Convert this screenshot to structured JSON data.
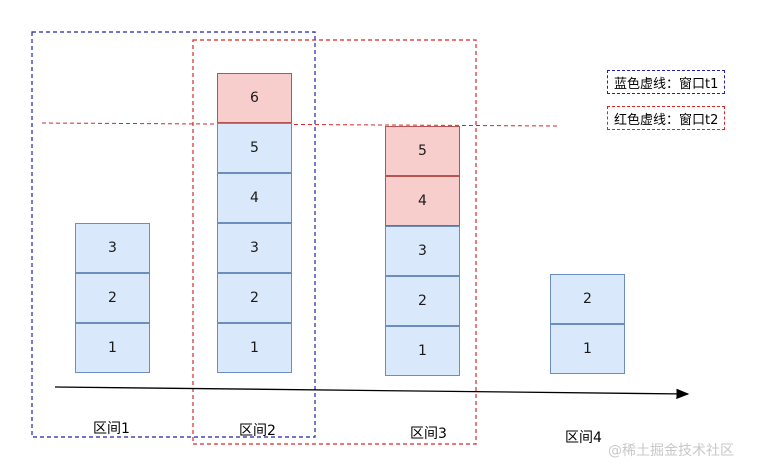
{
  "colors": {
    "blue_window": "#2222aa",
    "red_window": "#d62728",
    "blue_block_fill": "#dae8fc",
    "blue_block_border": "#6c8ebf",
    "red_block_fill": "#f8cecc",
    "red_block_border": "#b85450"
  },
  "intervals": [
    {
      "label": "区间1",
      "blocks": [
        {
          "value": "1",
          "color": "blue"
        },
        {
          "value": "2",
          "color": "blue"
        },
        {
          "value": "3",
          "color": "blue"
        }
      ]
    },
    {
      "label": "区间2",
      "blocks": [
        {
          "value": "1",
          "color": "blue"
        },
        {
          "value": "2",
          "color": "blue"
        },
        {
          "value": "3",
          "color": "blue"
        },
        {
          "value": "4",
          "color": "blue"
        },
        {
          "value": "5",
          "color": "blue"
        },
        {
          "value": "6",
          "color": "red"
        }
      ]
    },
    {
      "label": "区间3",
      "blocks": [
        {
          "value": "1",
          "color": "blue"
        },
        {
          "value": "2",
          "color": "blue"
        },
        {
          "value": "3",
          "color": "blue"
        },
        {
          "value": "4",
          "color": "red"
        },
        {
          "value": "5",
          "color": "red"
        }
      ]
    },
    {
      "label": "区间4",
      "blocks": [
        {
          "value": "1",
          "color": "blue"
        },
        {
          "value": "2",
          "color": "blue"
        }
      ]
    }
  ],
  "legend": {
    "blue": "蓝色虚线：窗口t1",
    "red": "红色虚线：窗口t2"
  },
  "watermark": "@稀土掘金技术社区"
}
